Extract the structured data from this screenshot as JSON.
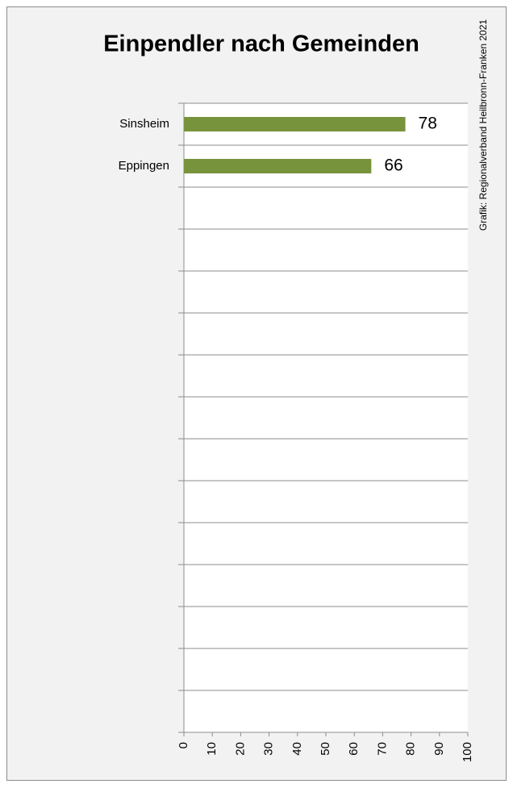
{
  "chart_data": {
    "type": "bar",
    "orientation": "horizontal",
    "title": "Einpendler nach Gemeinden",
    "source": "Grafik: Regionalverband Heilbronn-Franken 2021",
    "categories": [
      "Sinsheim",
      "Eppingen",
      null,
      null,
      null,
      null,
      null,
      null,
      null,
      null,
      null,
      null,
      null,
      null,
      null
    ],
    "values": [
      78,
      66,
      null,
      null,
      null,
      null,
      null,
      null,
      null,
      null,
      null,
      null,
      null,
      null,
      null
    ],
    "color": "#77933c",
    "xlim": [
      0,
      100
    ],
    "xticks": [
      0,
      10,
      20,
      30,
      40,
      50,
      60,
      70,
      80,
      90,
      100
    ]
  }
}
